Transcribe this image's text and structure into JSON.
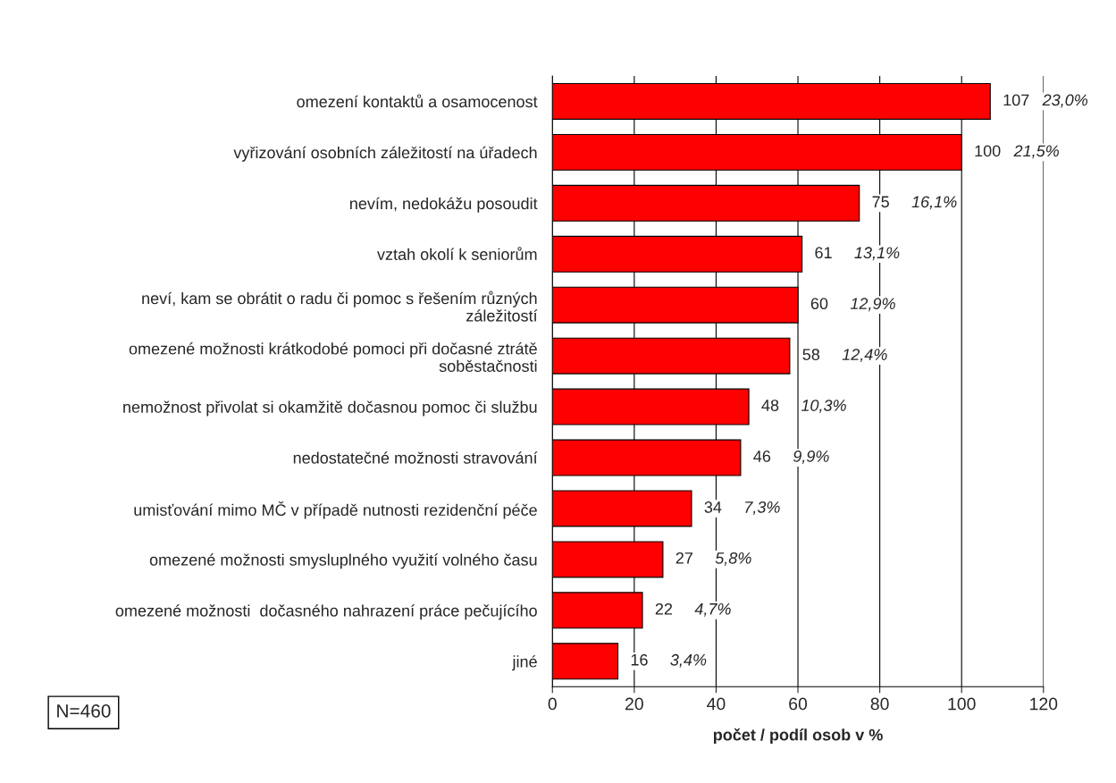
{
  "chart_data": {
    "type": "bar",
    "orientation": "horizontal",
    "xlabel": "počet / podíl osob v %",
    "categories": [
      "omezení kontaktů a osamocenost",
      "vyřizování osobních záležitostí na úřadech",
      "nevím, nedokážu posoudit",
      "vztah okolí k seniorům",
      "neví, kam se obrátit o radu či pomoc s řešením různých\nzáležitostí",
      "omezené možnosti krátkodobé pomoci při dočasné ztrátě\nsoběstačnosti",
      "nemožnost přivolat si okamžitě dočasnou pomoc či službu",
      "nedostatečné možnosti stravování",
      "umisťování mimo MČ v případě nutnosti rezidenční péče",
      "omezené možnosti smysluplného využití volného času",
      "omezené možnosti  dočasného nahrazení práce pečujícího",
      "jiné"
    ],
    "values": [
      107,
      100,
      75,
      61,
      60,
      58,
      48,
      46,
      34,
      27,
      22,
      16
    ],
    "color": "#ff0000",
    "data_labels": true,
    "xlim": [
      0,
      120
    ],
    "xticks": [
      0,
      20,
      40,
      60,
      80,
      100,
      120
    ],
    "grid": "x",
    "legend": false,
    "annotations": [
      "23,0%",
      "21,5%",
      "16,1%",
      "13,1%",
      "12,9%",
      "12,4%",
      "10,3%",
      "9,9%",
      "7,3%",
      "5,8%",
      "4,7%",
      "3,4%",
      "N=460"
    ]
  }
}
